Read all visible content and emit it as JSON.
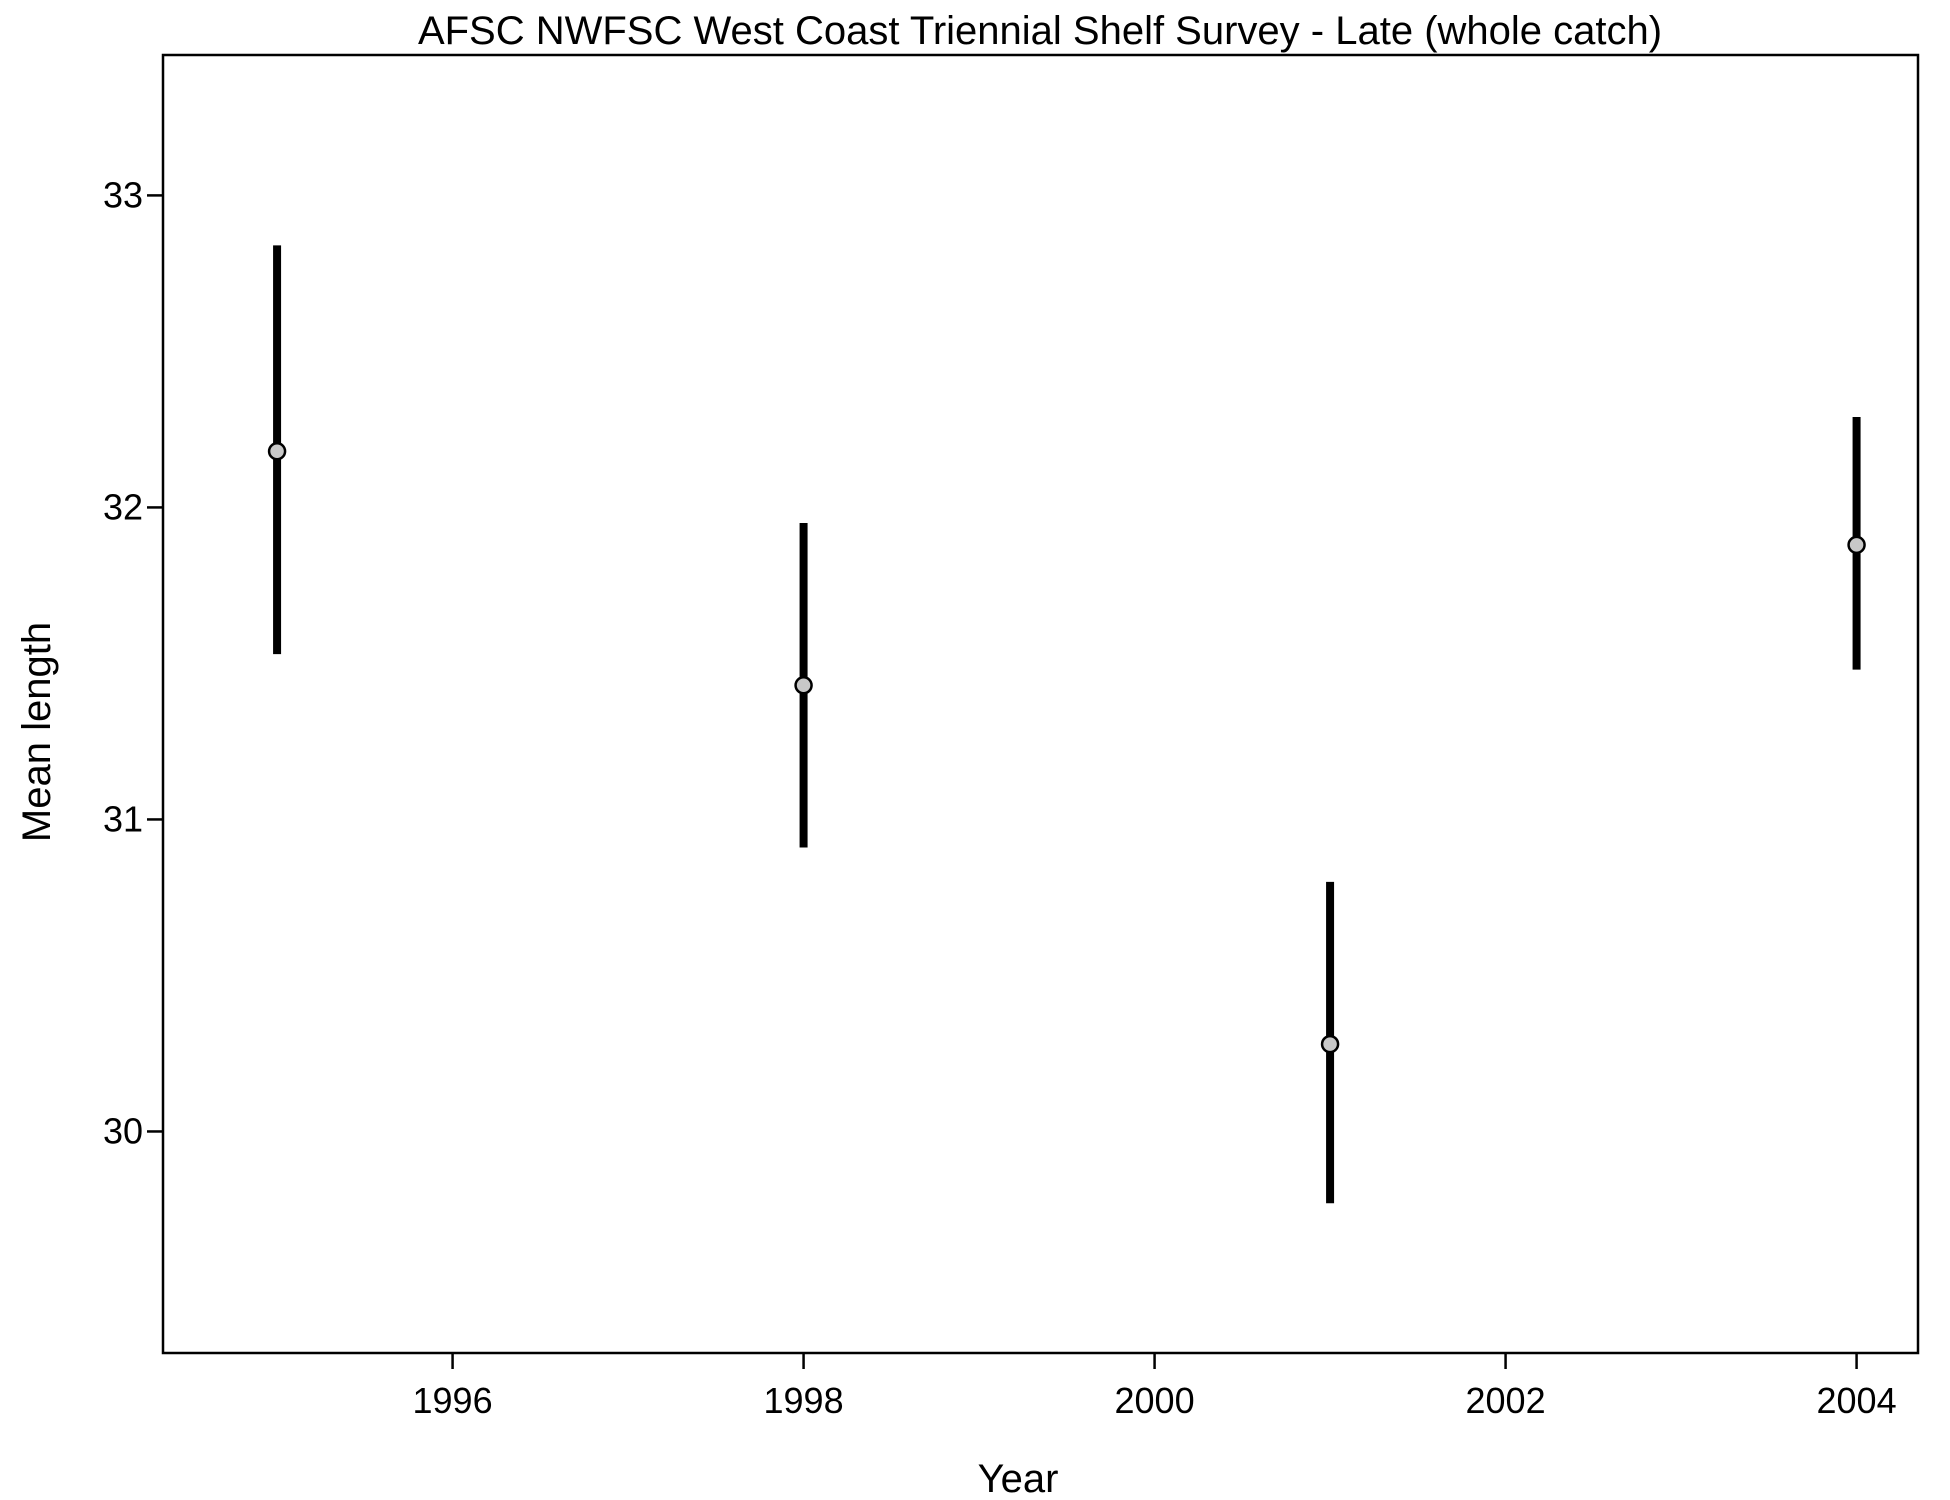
{
  "chart_data": {
    "type": "scatter",
    "title": "AFSC NWFSC West Coast Triennial Shelf Survey - Late (whole catch)",
    "xlabel": "Year",
    "ylabel": "Mean length",
    "xlim": [
      1994.35,
      2004.35
    ],
    "ylim": [
      29.29,
      33.45
    ],
    "xticks": [
      1996,
      1998,
      2000,
      2002,
      2004
    ],
    "yticks": [
      30,
      31,
      32,
      33
    ],
    "grid": false,
    "legend": "none",
    "point_fill": "#c8c8c8",
    "line_color": "#000000",
    "x": [
      1995,
      1998,
      2001,
      2004
    ],
    "y": [
      32.18,
      31.43,
      30.28,
      31.88
    ],
    "lower": [
      31.53,
      30.91,
      29.77,
      31.48
    ],
    "upper": [
      32.84,
      31.95,
      30.8,
      32.29
    ]
  }
}
